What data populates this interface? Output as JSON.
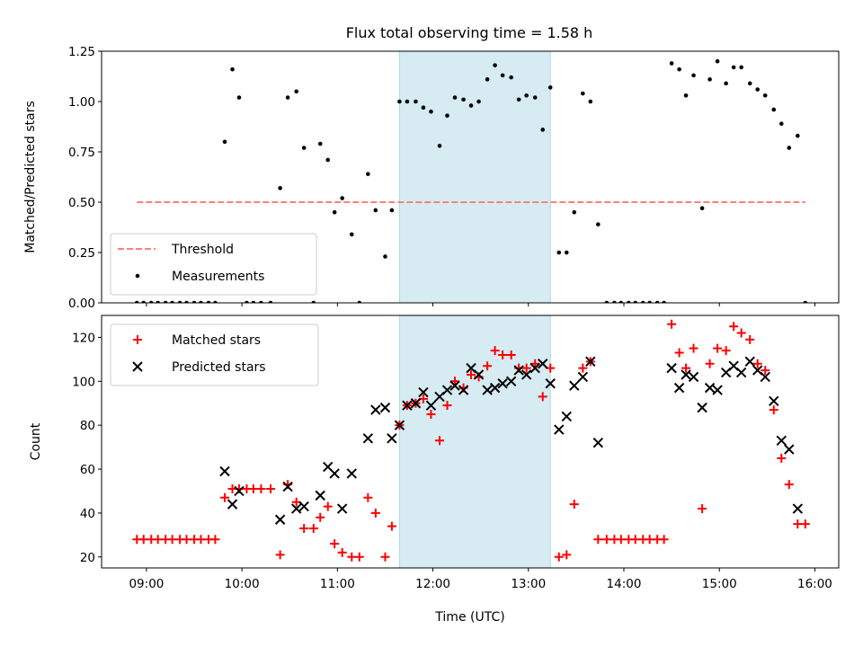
{
  "title": "Flux total observing time = 1.58 h",
  "colors": {
    "threshold": "#ff7f7f",
    "highlight": "#add8e6",
    "matched": "#ff0000",
    "predicted": "#000000"
  },
  "chart_data": [
    {
      "type": "scatter",
      "ylabel": "Matched/Predicted stars",
      "ylim": [
        0,
        1.25
      ],
      "yticks": [
        "0.00",
        "0.25",
        "0.50",
        "0.75",
        "1.00",
        "1.25"
      ],
      "xlim": [
        8.53,
        16.25
      ],
      "highlight_span": [
        11.65,
        13.23
      ],
      "threshold": {
        "name": "Threshold",
        "value": 0.5,
        "x_range": [
          8.9,
          15.9
        ]
      },
      "legend": {
        "position": "lower left",
        "entries": [
          "Threshold",
          "Measurements"
        ]
      },
      "series": [
        {
          "name": "Measurements",
          "points": [
            [
              8.9,
              0
            ],
            [
              8.97,
              0
            ],
            [
              9.05,
              0
            ],
            [
              9.12,
              0
            ],
            [
              9.2,
              0
            ],
            [
              9.27,
              0
            ],
            [
              9.35,
              0
            ],
            [
              9.42,
              0
            ],
            [
              9.5,
              0
            ],
            [
              9.57,
              0
            ],
            [
              9.65,
              0
            ],
            [
              9.72,
              0
            ],
            [
              9.82,
              0.8
            ],
            [
              9.9,
              1.16
            ],
            [
              9.97,
              1.02
            ],
            [
              10.05,
              0
            ],
            [
              10.12,
              0
            ],
            [
              10.2,
              0
            ],
            [
              10.3,
              0
            ],
            [
              10.4,
              0.57
            ],
            [
              10.48,
              1.02
            ],
            [
              10.57,
              1.05
            ],
            [
              10.65,
              0.77
            ],
            [
              10.75,
              0
            ],
            [
              10.82,
              0.79
            ],
            [
              10.9,
              0.71
            ],
            [
              10.97,
              0.45
            ],
            [
              11.05,
              0.52
            ],
            [
              11.15,
              0.34
            ],
            [
              11.23,
              0
            ],
            [
              11.32,
              0.64
            ],
            [
              11.4,
              0.46
            ],
            [
              11.5,
              0.23
            ],
            [
              11.57,
              0.46
            ],
            [
              11.65,
              1.0
            ],
            [
              11.73,
              1.0
            ],
            [
              11.82,
              1.0
            ],
            [
              11.9,
              0.97
            ],
            [
              11.98,
              0.95
            ],
            [
              12.07,
              0.78
            ],
            [
              12.15,
              0.93
            ],
            [
              12.23,
              1.02
            ],
            [
              12.32,
              1.01
            ],
            [
              12.4,
              0.98
            ],
            [
              12.48,
              1.0
            ],
            [
              12.57,
              1.11
            ],
            [
              12.65,
              1.18
            ],
            [
              12.73,
              1.13
            ],
            [
              12.82,
              1.12
            ],
            [
              12.9,
              1.01
            ],
            [
              12.98,
              1.03
            ],
            [
              13.07,
              1.02
            ],
            [
              13.15,
              0.86
            ],
            [
              13.23,
              1.07
            ],
            [
              13.32,
              0.25
            ],
            [
              13.4,
              0.25
            ],
            [
              13.48,
              0.45
            ],
            [
              13.57,
              1.04
            ],
            [
              13.65,
              1.0
            ],
            [
              13.73,
              0.39
            ],
            [
              13.82,
              0
            ],
            [
              13.9,
              0
            ],
            [
              13.97,
              0
            ],
            [
              14.05,
              0
            ],
            [
              14.12,
              0
            ],
            [
              14.2,
              0
            ],
            [
              14.27,
              0
            ],
            [
              14.35,
              0
            ],
            [
              14.42,
              0
            ],
            [
              14.5,
              1.19
            ],
            [
              14.58,
              1.16
            ],
            [
              14.65,
              1.03
            ],
            [
              14.73,
              1.13
            ],
            [
              14.82,
              0.47
            ],
            [
              14.9,
              1.11
            ],
            [
              14.98,
              1.2
            ],
            [
              15.07,
              1.09
            ],
            [
              15.15,
              1.17
            ],
            [
              15.23,
              1.17
            ],
            [
              15.32,
              1.09
            ],
            [
              15.4,
              1.06
            ],
            [
              15.48,
              1.03
            ],
            [
              15.57,
              0.96
            ],
            [
              15.65,
              0.89
            ],
            [
              15.73,
              0.77
            ],
            [
              15.82,
              0.83
            ],
            [
              15.9,
              0
            ]
          ]
        }
      ]
    },
    {
      "type": "scatter",
      "ylabel": "Count",
      "xlabel": "Time (UTC)",
      "ylim": [
        15,
        130
      ],
      "yticks": [
        "20",
        "40",
        "60",
        "80",
        "100",
        "120"
      ],
      "xlim": [
        8.53,
        16.25
      ],
      "xticks": [
        "09:00",
        "10:00",
        "11:00",
        "12:00",
        "13:00",
        "14:00",
        "15:00",
        "16:00"
      ],
      "highlight_span": [
        11.65,
        13.23
      ],
      "legend": {
        "position": "upper left",
        "entries": [
          "Matched stars",
          "Predicted stars"
        ]
      },
      "series": [
        {
          "name": "Matched stars",
          "marker": "plus",
          "points": [
            [
              8.9,
              28
            ],
            [
              8.97,
              28
            ],
            [
              9.05,
              28
            ],
            [
              9.12,
              28
            ],
            [
              9.2,
              28
            ],
            [
              9.27,
              28
            ],
            [
              9.35,
              28
            ],
            [
              9.42,
              28
            ],
            [
              9.5,
              28
            ],
            [
              9.57,
              28
            ],
            [
              9.65,
              28
            ],
            [
              9.72,
              28
            ],
            [
              9.82,
              47
            ],
            [
              9.9,
              51
            ],
            [
              9.97,
              51
            ],
            [
              10.05,
              51
            ],
            [
              10.12,
              51
            ],
            [
              10.2,
              51
            ],
            [
              10.3,
              51
            ],
            [
              10.4,
              21
            ],
            [
              10.48,
              53
            ],
            [
              10.57,
              45
            ],
            [
              10.65,
              33
            ],
            [
              10.75,
              33
            ],
            [
              10.82,
              38
            ],
            [
              10.9,
              43
            ],
            [
              10.97,
              26
            ],
            [
              11.05,
              22
            ],
            [
              11.15,
              20
            ],
            [
              11.23,
              20
            ],
            [
              11.32,
              47
            ],
            [
              11.4,
              40
            ],
            [
              11.5,
              20
            ],
            [
              11.57,
              34
            ],
            [
              11.65,
              80
            ],
            [
              11.73,
              89
            ],
            [
              11.82,
              90
            ],
            [
              11.9,
              92
            ],
            [
              11.98,
              85
            ],
            [
              12.07,
              73
            ],
            [
              12.15,
              89
            ],
            [
              12.23,
              100
            ],
            [
              12.32,
              97
            ],
            [
              12.4,
              103
            ],
            [
              12.48,
              102
            ],
            [
              12.57,
              107
            ],
            [
              12.65,
              114
            ],
            [
              12.73,
              112
            ],
            [
              12.82,
              112
            ],
            [
              12.9,
              106
            ],
            [
              12.98,
              106
            ],
            [
              13.07,
              108
            ],
            [
              13.15,
              93
            ],
            [
              13.23,
              106
            ],
            [
              13.32,
              20
            ],
            [
              13.4,
              21
            ],
            [
              13.48,
              44
            ],
            [
              13.57,
              106
            ],
            [
              13.65,
              109
            ],
            [
              13.73,
              28
            ],
            [
              13.82,
              28
            ],
            [
              13.9,
              28
            ],
            [
              13.97,
              28
            ],
            [
              14.05,
              28
            ],
            [
              14.12,
              28
            ],
            [
              14.2,
              28
            ],
            [
              14.27,
              28
            ],
            [
              14.35,
              28
            ],
            [
              14.42,
              28
            ],
            [
              14.5,
              126
            ],
            [
              14.58,
              113
            ],
            [
              14.65,
              106
            ],
            [
              14.73,
              115
            ],
            [
              14.82,
              42
            ],
            [
              14.9,
              108
            ],
            [
              14.98,
              115
            ],
            [
              15.07,
              114
            ],
            [
              15.15,
              125
            ],
            [
              15.23,
              122
            ],
            [
              15.32,
              119
            ],
            [
              15.4,
              108
            ],
            [
              15.48,
              105
            ],
            [
              15.57,
              87
            ],
            [
              15.65,
              65
            ],
            [
              15.73,
              53
            ],
            [
              15.82,
              35
            ],
            [
              15.9,
              35
            ]
          ]
        },
        {
          "name": "Predicted stars",
          "marker": "x",
          "points": [
            [
              9.82,
              59
            ],
            [
              9.9,
              44
            ],
            [
              9.97,
              50
            ],
            [
              10.4,
              37
            ],
            [
              10.48,
              52
            ],
            [
              10.57,
              42
            ],
            [
              10.65,
              43
            ],
            [
              10.82,
              48
            ],
            [
              10.9,
              61
            ],
            [
              10.97,
              58
            ],
            [
              11.05,
              42
            ],
            [
              11.15,
              58
            ],
            [
              11.32,
              74
            ],
            [
              11.4,
              87
            ],
            [
              11.5,
              88
            ],
            [
              11.57,
              74
            ],
            [
              11.65,
              80
            ],
            [
              11.73,
              89
            ],
            [
              11.82,
              90
            ],
            [
              11.9,
              95
            ],
            [
              11.98,
              89
            ],
            [
              12.07,
              93
            ],
            [
              12.15,
              96
            ],
            [
              12.23,
              98
            ],
            [
              12.32,
              96
            ],
            [
              12.4,
              106
            ],
            [
              12.48,
              103
            ],
            [
              12.57,
              96
            ],
            [
              12.65,
              97
            ],
            [
              12.73,
              99
            ],
            [
              12.82,
              100
            ],
            [
              12.9,
              105
            ],
            [
              12.98,
              103
            ],
            [
              13.07,
              106
            ],
            [
              13.15,
              108
            ],
            [
              13.23,
              99
            ],
            [
              13.32,
              78
            ],
            [
              13.4,
              84
            ],
            [
              13.48,
              98
            ],
            [
              13.57,
              102
            ],
            [
              13.65,
              109
            ],
            [
              13.73,
              72
            ],
            [
              14.5,
              106
            ],
            [
              14.58,
              97
            ],
            [
              14.65,
              103
            ],
            [
              14.73,
              102
            ],
            [
              14.82,
              88
            ],
            [
              14.9,
              97
            ],
            [
              14.98,
              96
            ],
            [
              15.07,
              104
            ],
            [
              15.15,
              107
            ],
            [
              15.23,
              104
            ],
            [
              15.32,
              109
            ],
            [
              15.4,
              105
            ],
            [
              15.48,
              102
            ],
            [
              15.57,
              91
            ],
            [
              15.65,
              73
            ],
            [
              15.73,
              69
            ],
            [
              15.82,
              42
            ]
          ]
        }
      ]
    }
  ]
}
